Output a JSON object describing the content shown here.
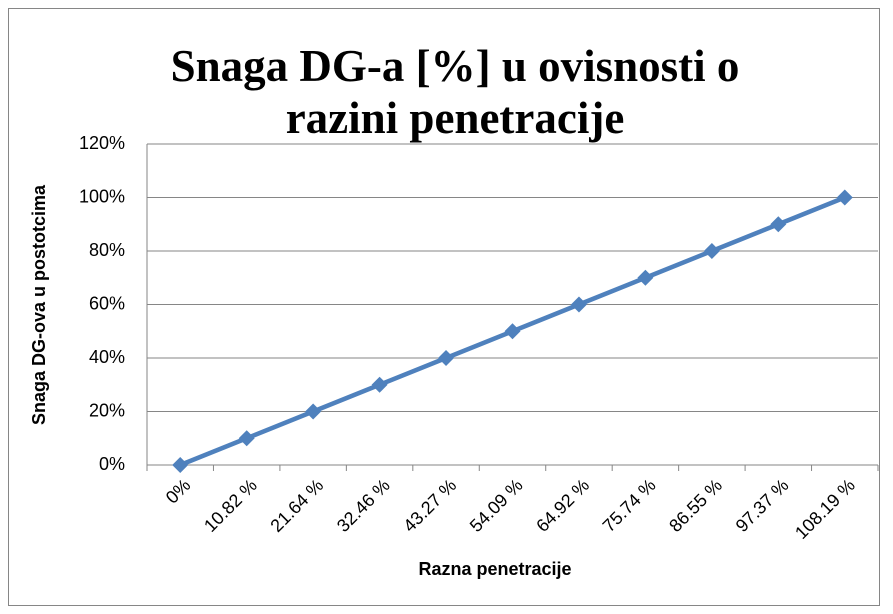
{
  "chart_data": {
    "type": "line",
    "title": "Snaga DG-a [%] u ovisnosti o razini penetracije",
    "x_label": "Razna penetracije",
    "y_label": "Snaga DG-ova u postotcima",
    "categories": [
      "0%",
      "10.82 %",
      "21.64 %",
      "32.46 %",
      "43.27 %",
      "54.09 %",
      "64.92 %",
      "75.74 %",
      "86.55 %",
      "97.37 %",
      "108.19 %"
    ],
    "values": [
      0,
      10,
      20,
      30,
      40,
      50,
      60,
      70,
      80,
      90,
      100
    ],
    "color": "#4f81bd",
    "ylim": [
      0,
      120
    ],
    "yticks": [
      {
        "value": 0,
        "label": "0%"
      },
      {
        "value": 20,
        "label": "20%"
      },
      {
        "value": 40,
        "label": "40%"
      },
      {
        "value": 60,
        "label": "60%"
      },
      {
        "value": 80,
        "label": "80%"
      },
      {
        "value": 100,
        "label": "100%"
      },
      {
        "value": 120,
        "label": "120%"
      }
    ],
    "grid": true
  }
}
